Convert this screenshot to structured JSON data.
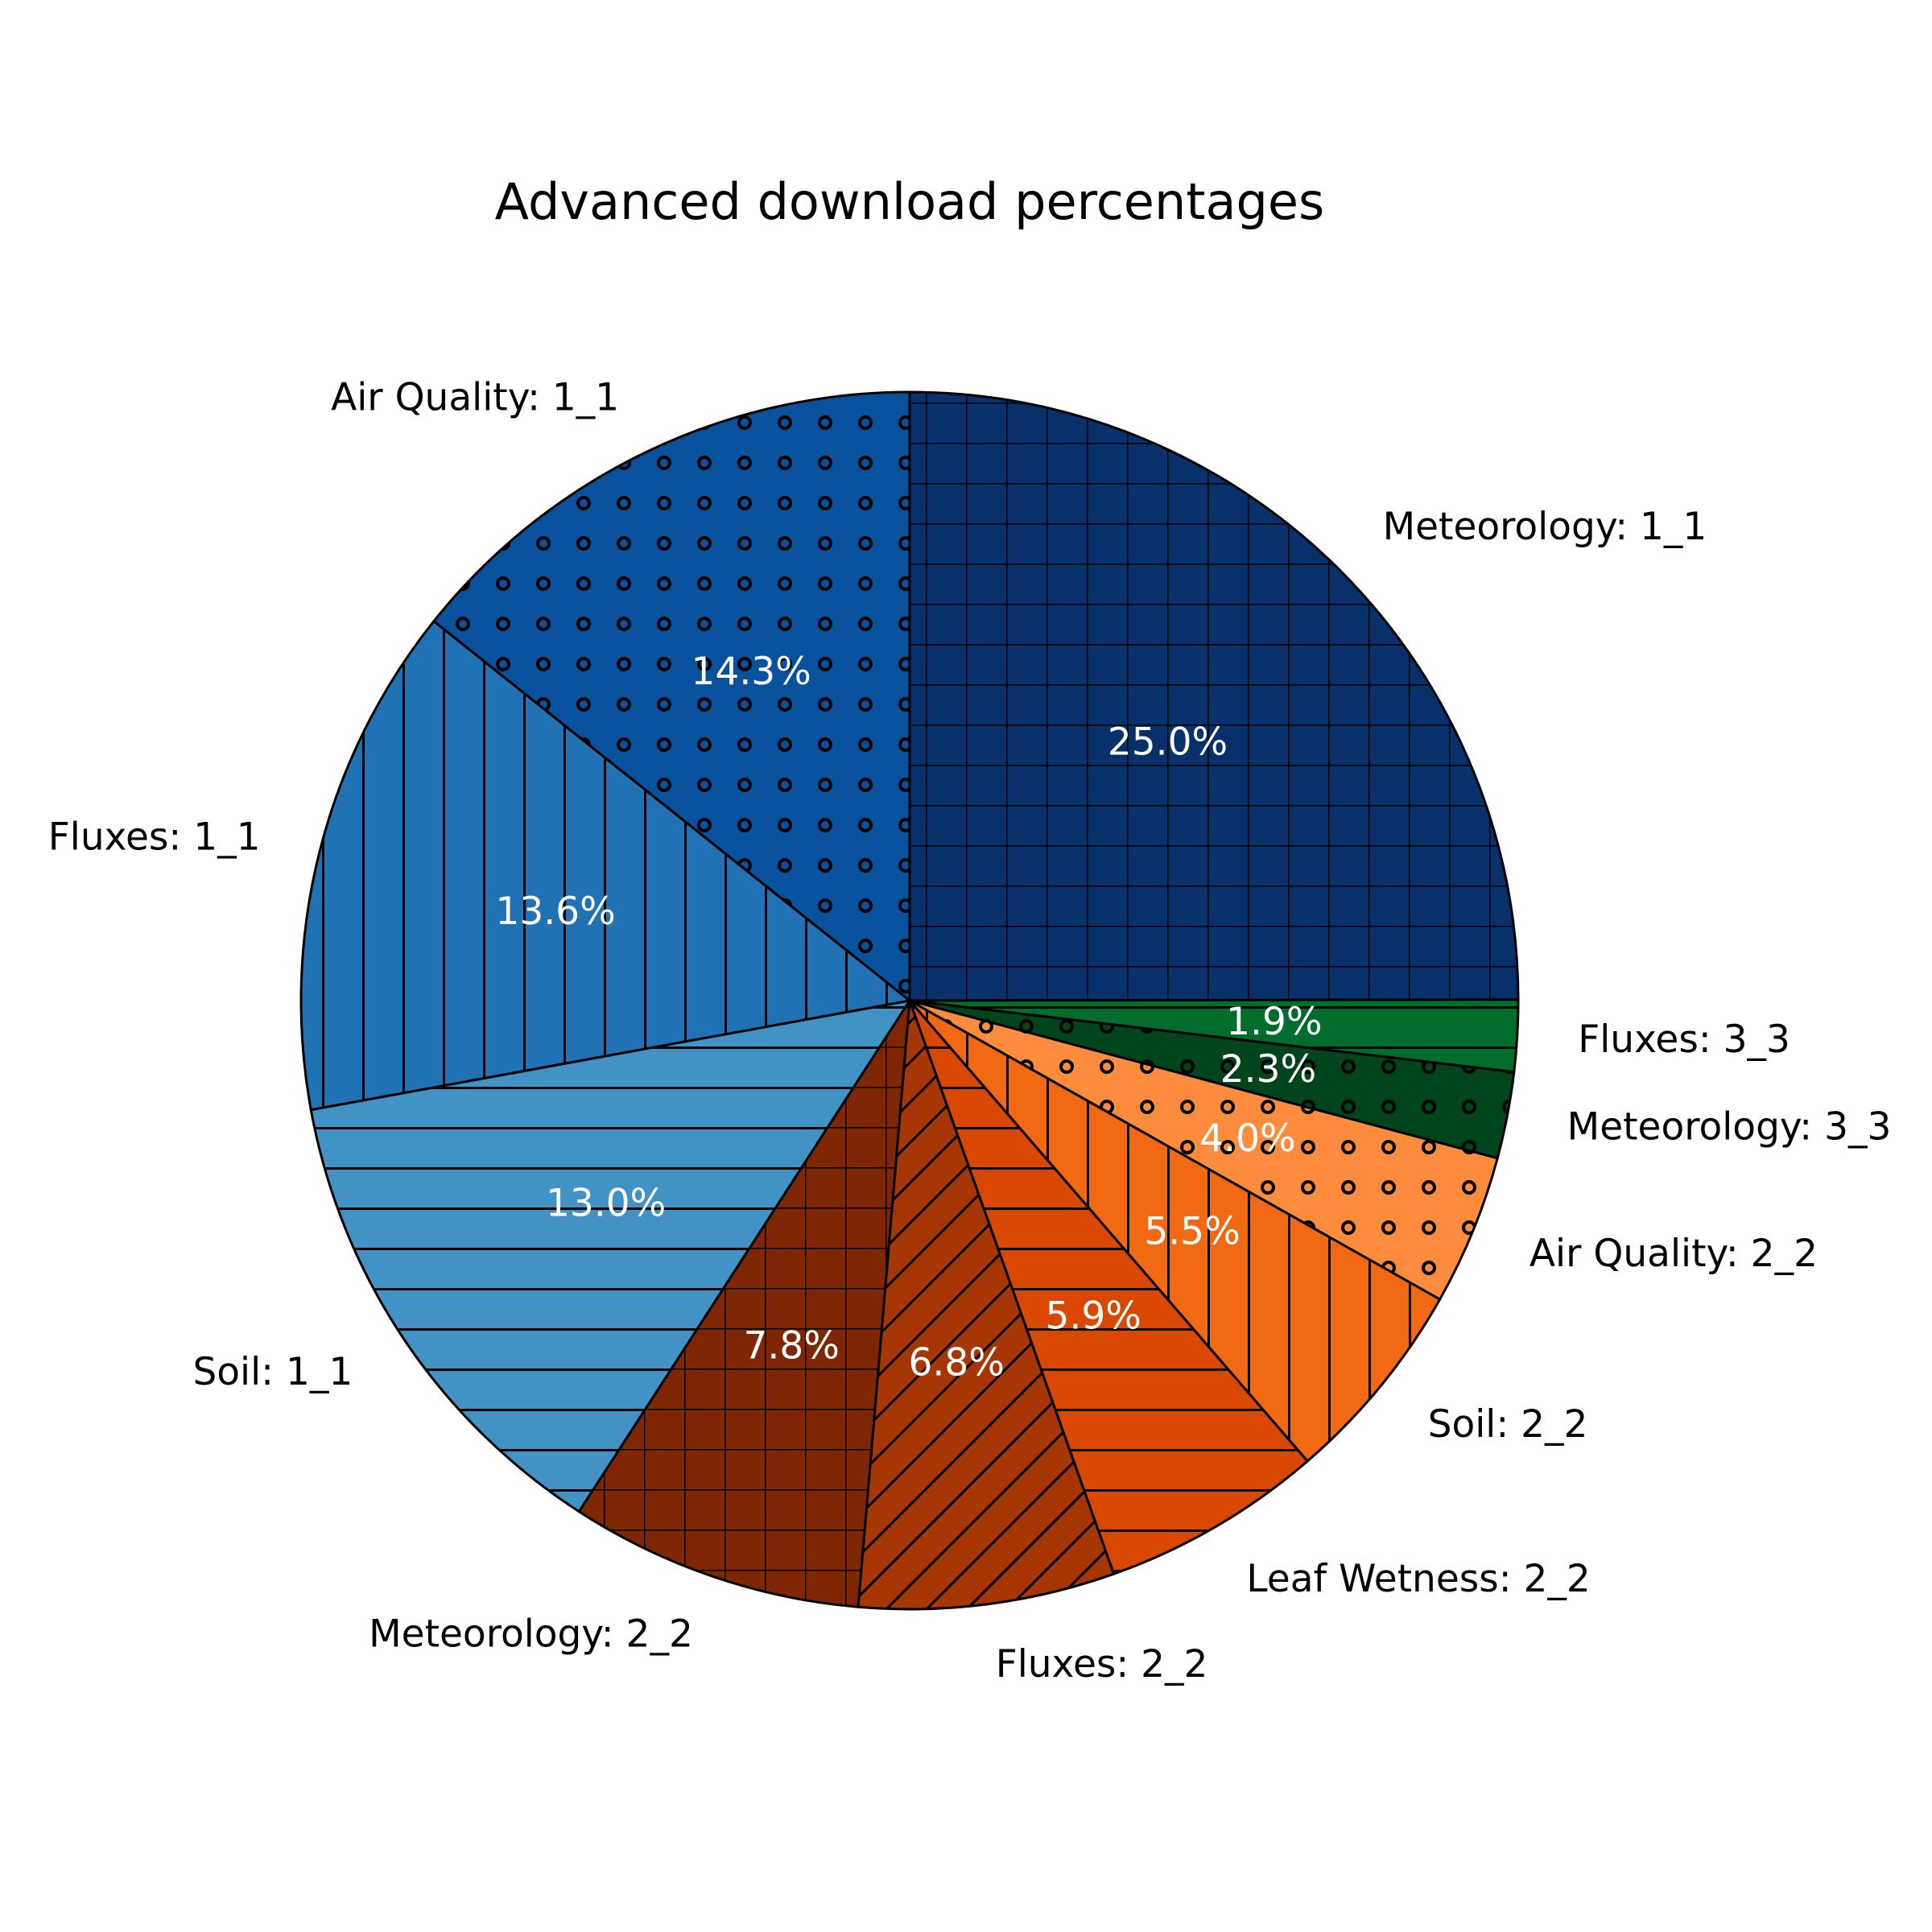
{
  "chart_data": {
    "type": "pie",
    "title": "Advanced download percentages",
    "start_angle_deg": 90,
    "direction": "clockwise",
    "slices": [
      {
        "label": "Meteorology: 1_1",
        "value": 25.0,
        "pct_label": "25.0%",
        "color": "#08306b",
        "hatch": "grid"
      },
      {
        "label": "Fluxes: 3_3",
        "value": 1.9,
        "pct_label": "1.9%",
        "color": "#006d2c",
        "hatch": "hlines"
      },
      {
        "label": "Meteorology: 3_3",
        "value": 2.3,
        "pct_label": "2.3%",
        "color": "#00441b",
        "hatch": "dots"
      },
      {
        "label": "Air Quality: 2_2",
        "value": 4.0,
        "pct_label": "4.0%",
        "color": "#fd8d3c",
        "hatch": "dots"
      },
      {
        "label": "Soil: 2_2",
        "value": 5.5,
        "pct_label": "5.5%",
        "color": "#f16913",
        "hatch": "vlines"
      },
      {
        "label": "Leaf Wetness: 2_2",
        "value": 5.9,
        "pct_label": "5.9%",
        "color": "#d94801",
        "hatch": "hlines"
      },
      {
        "label": "Fluxes: 2_2",
        "value": 6.8,
        "pct_label": "6.8%",
        "color": "#a63603",
        "hatch": "diag"
      },
      {
        "label": "Meteorology: 2_2",
        "value": 7.8,
        "pct_label": "7.8%",
        "color": "#7f2704",
        "hatch": "grid"
      },
      {
        "label": "Soil: 1_1",
        "value": 13.0,
        "pct_label": "13.0%",
        "color": "#4292c6",
        "hatch": "hlines"
      },
      {
        "label": "Fluxes: 1_1",
        "value": 13.6,
        "pct_label": "13.6%",
        "color": "#2171b5",
        "hatch": "vlines"
      },
      {
        "label": "Air Quality: 1_1",
        "value": 14.3,
        "pct_label": "14.3%",
        "color": "#08519c",
        "hatch": "dots"
      }
    ]
  }
}
